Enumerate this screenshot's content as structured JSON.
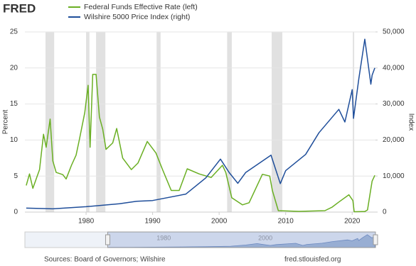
{
  "logo": "FRED",
  "source": "Sources: Board of Governors; Wilshire",
  "site": "fred.stlouisfed.org",
  "chart_data": {
    "type": "line",
    "ylabel": "Percent",
    "y2label": "Index",
    "xlim": [
      1970.8,
      2023.5
    ],
    "xticks": [
      1980,
      1990,
      2000,
      2010,
      2020
    ],
    "ylim": [
      0,
      25
    ],
    "yticks": [
      0,
      5,
      10,
      15,
      20,
      25
    ],
    "y2lim": [
      0,
      50000
    ],
    "y2ticks": [
      0,
      {
        "value": 10000,
        "label": "10,000"
      },
      {
        "value": 20000,
        "label": "20,000"
      },
      {
        "value": 30000,
        "label": "30,000"
      },
      {
        "value": 40000,
        "label": "40,000"
      },
      {
        "value": 50000,
        "label": "50,000"
      }
    ],
    "grid": true,
    "recession_color": "#e1e1e1",
    "recessions": [
      [
        1973.9,
        1975.2
      ],
      [
        1980.0,
        1980.5
      ],
      [
        1981.5,
        1982.9
      ],
      [
        1990.6,
        1991.2
      ],
      [
        2001.2,
        2001.9
      ],
      [
        2007.9,
        2009.5
      ],
      [
        2020.1,
        2020.3
      ]
    ],
    "series": [
      {
        "name": "Federal Funds Effective Rate (left)",
        "color": "#6aaf23",
        "x": [
          1971.0,
          1971.5,
          1972.0,
          1972.5,
          1973.0,
          1973.6,
          1974.0,
          1974.6,
          1975.0,
          1975.5,
          1976.5,
          1977.0,
          1977.8,
          1978.5,
          1979.0,
          1979.8,
          1980.3,
          1980.6,
          1981.0,
          1981.5,
          1982.0,
          1982.5,
          1983.0,
          1984.0,
          1984.6,
          1985.5,
          1986.8,
          1987.8,
          1989.2,
          1990.5,
          1991.5,
          1992.8,
          1994.0,
          1995.2,
          1997.0,
          1998.8,
          2000.5,
          2001.0,
          2001.9,
          2003.5,
          2004.5,
          2006.5,
          2007.6,
          2008.0,
          2008.9,
          2012.0,
          2015.9,
          2017.0,
          2018.0,
          2019.5,
          2020.1,
          2020.3,
          2021.9,
          2022.3,
          2022.7,
          2023.0,
          2023.4
        ],
        "values": [
          3.7,
          5.3,
          3.3,
          4.6,
          5.9,
          10.8,
          9.0,
          12.9,
          7.1,
          5.5,
          5.2,
          4.6,
          6.5,
          7.9,
          10.1,
          13.8,
          17.6,
          9.0,
          19.1,
          19.1,
          13.2,
          11.5,
          8.7,
          9.6,
          11.6,
          7.5,
          5.9,
          6.8,
          9.8,
          8.2,
          5.9,
          3.0,
          3.0,
          6.0,
          5.3,
          4.8,
          6.5,
          5.5,
          2.0,
          1.0,
          1.3,
          5.25,
          5.0,
          3.0,
          0.2,
          0.1,
          0.2,
          0.7,
          1.4,
          2.4,
          1.6,
          0.05,
          0.08,
          0.3,
          2.6,
          4.3,
          5.1
        ]
      },
      {
        "name": "Wilshire 5000 Price Index (right)",
        "color": "#1f4e9a",
        "axis": "y2",
        "x": [
          1971.0,
          1975.0,
          1980.0,
          1985.0,
          1987.6,
          1990.0,
          1995.0,
          1998.0,
          2000.2,
          2001.5,
          2002.8,
          2004.0,
          2007.8,
          2009.2,
          2010.0,
          2013.0,
          2015.0,
          2018.0,
          2018.9,
          2020.0,
          2020.2,
          2021.0,
          2021.9,
          2022.8,
          2023.0,
          2023.4
        ],
        "values": [
          1100,
          900,
          1500,
          2300,
          3000,
          3200,
          5000,
          9500,
          14700,
          11000,
          8000,
          11000,
          15800,
          7900,
          11500,
          16000,
          22000,
          28500,
          25000,
          34000,
          26000,
          37000,
          48000,
          35500,
          38000,
          40000
        ]
      }
    ],
    "navigator": {
      "xlim": [
        1954.5,
        2023.5
      ],
      "xticks": [
        1980,
        2000
      ]
    }
  }
}
